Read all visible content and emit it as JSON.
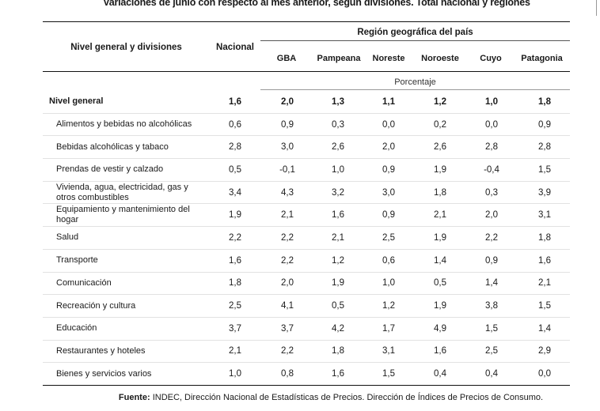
{
  "title": "Variaciones de junio con respecto al mes anterior, según divisiones. Total nacional y regiones",
  "header": {
    "left": "Nivel general y divisiones",
    "nacional": "Nacional",
    "region": "Región geográfica del país",
    "regions": [
      "GBA",
      "Pampeana",
      "Noreste",
      "Noroeste",
      "Cuyo",
      "Patagonia"
    ],
    "unit": "Porcentaje"
  },
  "rows": [
    {
      "label": "Nivel general",
      "bold": true,
      "values": [
        "1,6",
        "2,0",
        "1,3",
        "1,1",
        "1,2",
        "1,0",
        "1,8"
      ]
    },
    {
      "label": "Alimentos y bebidas no alcohólicas",
      "values": [
        "0,6",
        "0,9",
        "0,3",
        "0,0",
        "0,2",
        "0,0",
        "0,9"
      ]
    },
    {
      "label": "Bebidas alcohólicas y tabaco",
      "values": [
        "2,8",
        "3,0",
        "2,6",
        "2,0",
        "2,6",
        "2,8",
        "2,8"
      ]
    },
    {
      "label": "Prendas de vestir y calzado",
      "values": [
        "0,5",
        "-0,1",
        "1,0",
        "0,9",
        "1,9",
        "-0,4",
        "1,5"
      ]
    },
    {
      "label": "Vivienda, agua, electricidad, gas y otros combustibles",
      "values": [
        "3,4",
        "4,3",
        "3,2",
        "3,0",
        "1,8",
        "0,3",
        "3,9"
      ]
    },
    {
      "label": "Equipamiento y mantenimiento del hogar",
      "values": [
        "1,9",
        "2,1",
        "1,6",
        "0,9",
        "2,1",
        "2,0",
        "3,1"
      ]
    },
    {
      "label": "Salud",
      "values": [
        "2,2",
        "2,2",
        "2,1",
        "2,5",
        "1,9",
        "2,2",
        "1,8"
      ]
    },
    {
      "label": "Transporte",
      "values": [
        "1,6",
        "2,2",
        "1,2",
        "0,6",
        "1,4",
        "0,9",
        "1,6"
      ]
    },
    {
      "label": "Comunicación",
      "values": [
        "1,8",
        "2,0",
        "1,9",
        "1,0",
        "0,5",
        "1,4",
        "2,1"
      ]
    },
    {
      "label": "Recreación y cultura",
      "values": [
        "2,5",
        "4,1",
        "0,5",
        "1,2",
        "1,9",
        "3,8",
        "1,5"
      ]
    },
    {
      "label": "Educación",
      "values": [
        "3,7",
        "3,7",
        "4,2",
        "1,7",
        "4,9",
        "1,5",
        "1,4"
      ]
    },
    {
      "label": "Restaurantes y hoteles",
      "values": [
        "2,1",
        "2,2",
        "1,8",
        "3,1",
        "1,6",
        "2,5",
        "2,9"
      ]
    },
    {
      "label": "Bienes y servicios varios",
      "values": [
        "1,0",
        "0,8",
        "1,6",
        "1,5",
        "0,4",
        "0,4",
        "0,0"
      ]
    }
  ],
  "source": {
    "label": "Fuente:",
    "text": " INDEC, Dirección Nacional de Estadísticas de Precios. Dirección de Índices de Precios de Consumo."
  }
}
